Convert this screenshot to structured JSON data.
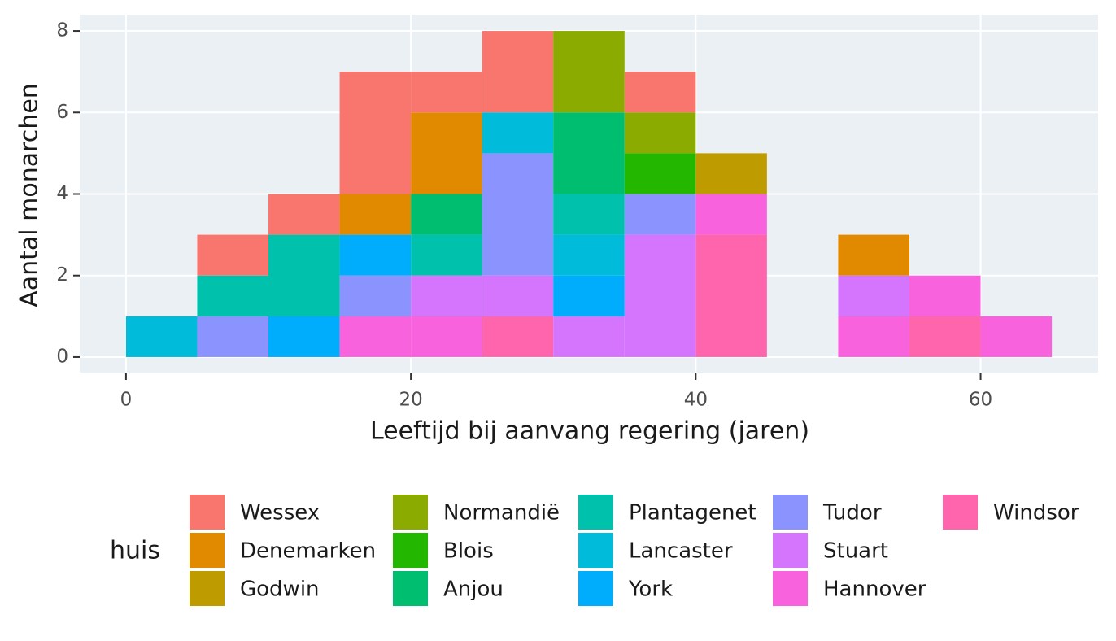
{
  "chart_data": {
    "type": "histogram",
    "x_label": "Leeftijd bij aanvang regering (jaren)",
    "y_label": "Aantal monarchen",
    "legend_title": "huis",
    "bins": [
      0,
      5,
      10,
      15,
      20,
      25,
      30,
      35,
      40,
      45,
      50,
      55,
      60,
      65
    ],
    "series": [
      {
        "name": "Wessex",
        "color": "#F8766D",
        "values": [
          0,
          1,
          1,
          3,
          1,
          2,
          0,
          1,
          0,
          0,
          0,
          0,
          0
        ]
      },
      {
        "name": "Denemarken",
        "color": "#E18A00",
        "values": [
          0,
          0,
          0,
          1,
          2,
          0,
          0,
          0,
          0,
          0,
          1,
          0,
          0
        ]
      },
      {
        "name": "Godwin",
        "color": "#BE9C00",
        "values": [
          0,
          0,
          0,
          0,
          0,
          0,
          0,
          0,
          1,
          0,
          0,
          0,
          0
        ]
      },
      {
        "name": "Normandië",
        "color": "#8CAB00",
        "values": [
          0,
          0,
          0,
          0,
          0,
          0,
          2,
          1,
          0,
          0,
          0,
          0,
          0
        ]
      },
      {
        "name": "Blois",
        "color": "#24B700",
        "values": [
          0,
          0,
          0,
          0,
          0,
          0,
          0,
          1,
          0,
          0,
          0,
          0,
          0
        ]
      },
      {
        "name": "Anjou",
        "color": "#00BE70",
        "values": [
          0,
          0,
          0,
          0,
          1,
          0,
          2,
          0,
          0,
          0,
          0,
          0,
          0
        ]
      },
      {
        "name": "Plantagenet",
        "color": "#00C1AB",
        "values": [
          0,
          1,
          2,
          0,
          1,
          0,
          1,
          0,
          0,
          0,
          0,
          0,
          0
        ]
      },
      {
        "name": "Lancaster",
        "color": "#00BBDA",
        "values": [
          1,
          0,
          0,
          0,
          0,
          1,
          1,
          0,
          0,
          0,
          0,
          0,
          0
        ]
      },
      {
        "name": "York",
        "color": "#00ACFC",
        "values": [
          0,
          0,
          1,
          1,
          0,
          0,
          1,
          0,
          0,
          0,
          0,
          0,
          0
        ]
      },
      {
        "name": "Tudor",
        "color": "#8B93FF",
        "values": [
          0,
          1,
          0,
          1,
          0,
          3,
          0,
          1,
          0,
          0,
          0,
          0,
          0
        ]
      },
      {
        "name": "Stuart",
        "color": "#D575FE",
        "values": [
          0,
          0,
          0,
          0,
          1,
          1,
          1,
          3,
          0,
          0,
          1,
          0,
          0
        ]
      },
      {
        "name": "Hannover",
        "color": "#F962DD",
        "values": [
          0,
          0,
          0,
          1,
          1,
          0,
          0,
          0,
          1,
          0,
          1,
          1,
          1
        ]
      },
      {
        "name": "Windsor",
        "color": "#FF65AC",
        "values": [
          0,
          0,
          0,
          0,
          0,
          1,
          0,
          0,
          3,
          0,
          0,
          1,
          0
        ]
      }
    ],
    "xlim": [
      -3.25,
      68.25
    ],
    "xticks": [
      0,
      20,
      40,
      60
    ],
    "ylim": [
      -0.4,
      8.4
    ],
    "yticks": [
      0,
      2,
      4,
      6,
      8
    ],
    "grid": true
  }
}
